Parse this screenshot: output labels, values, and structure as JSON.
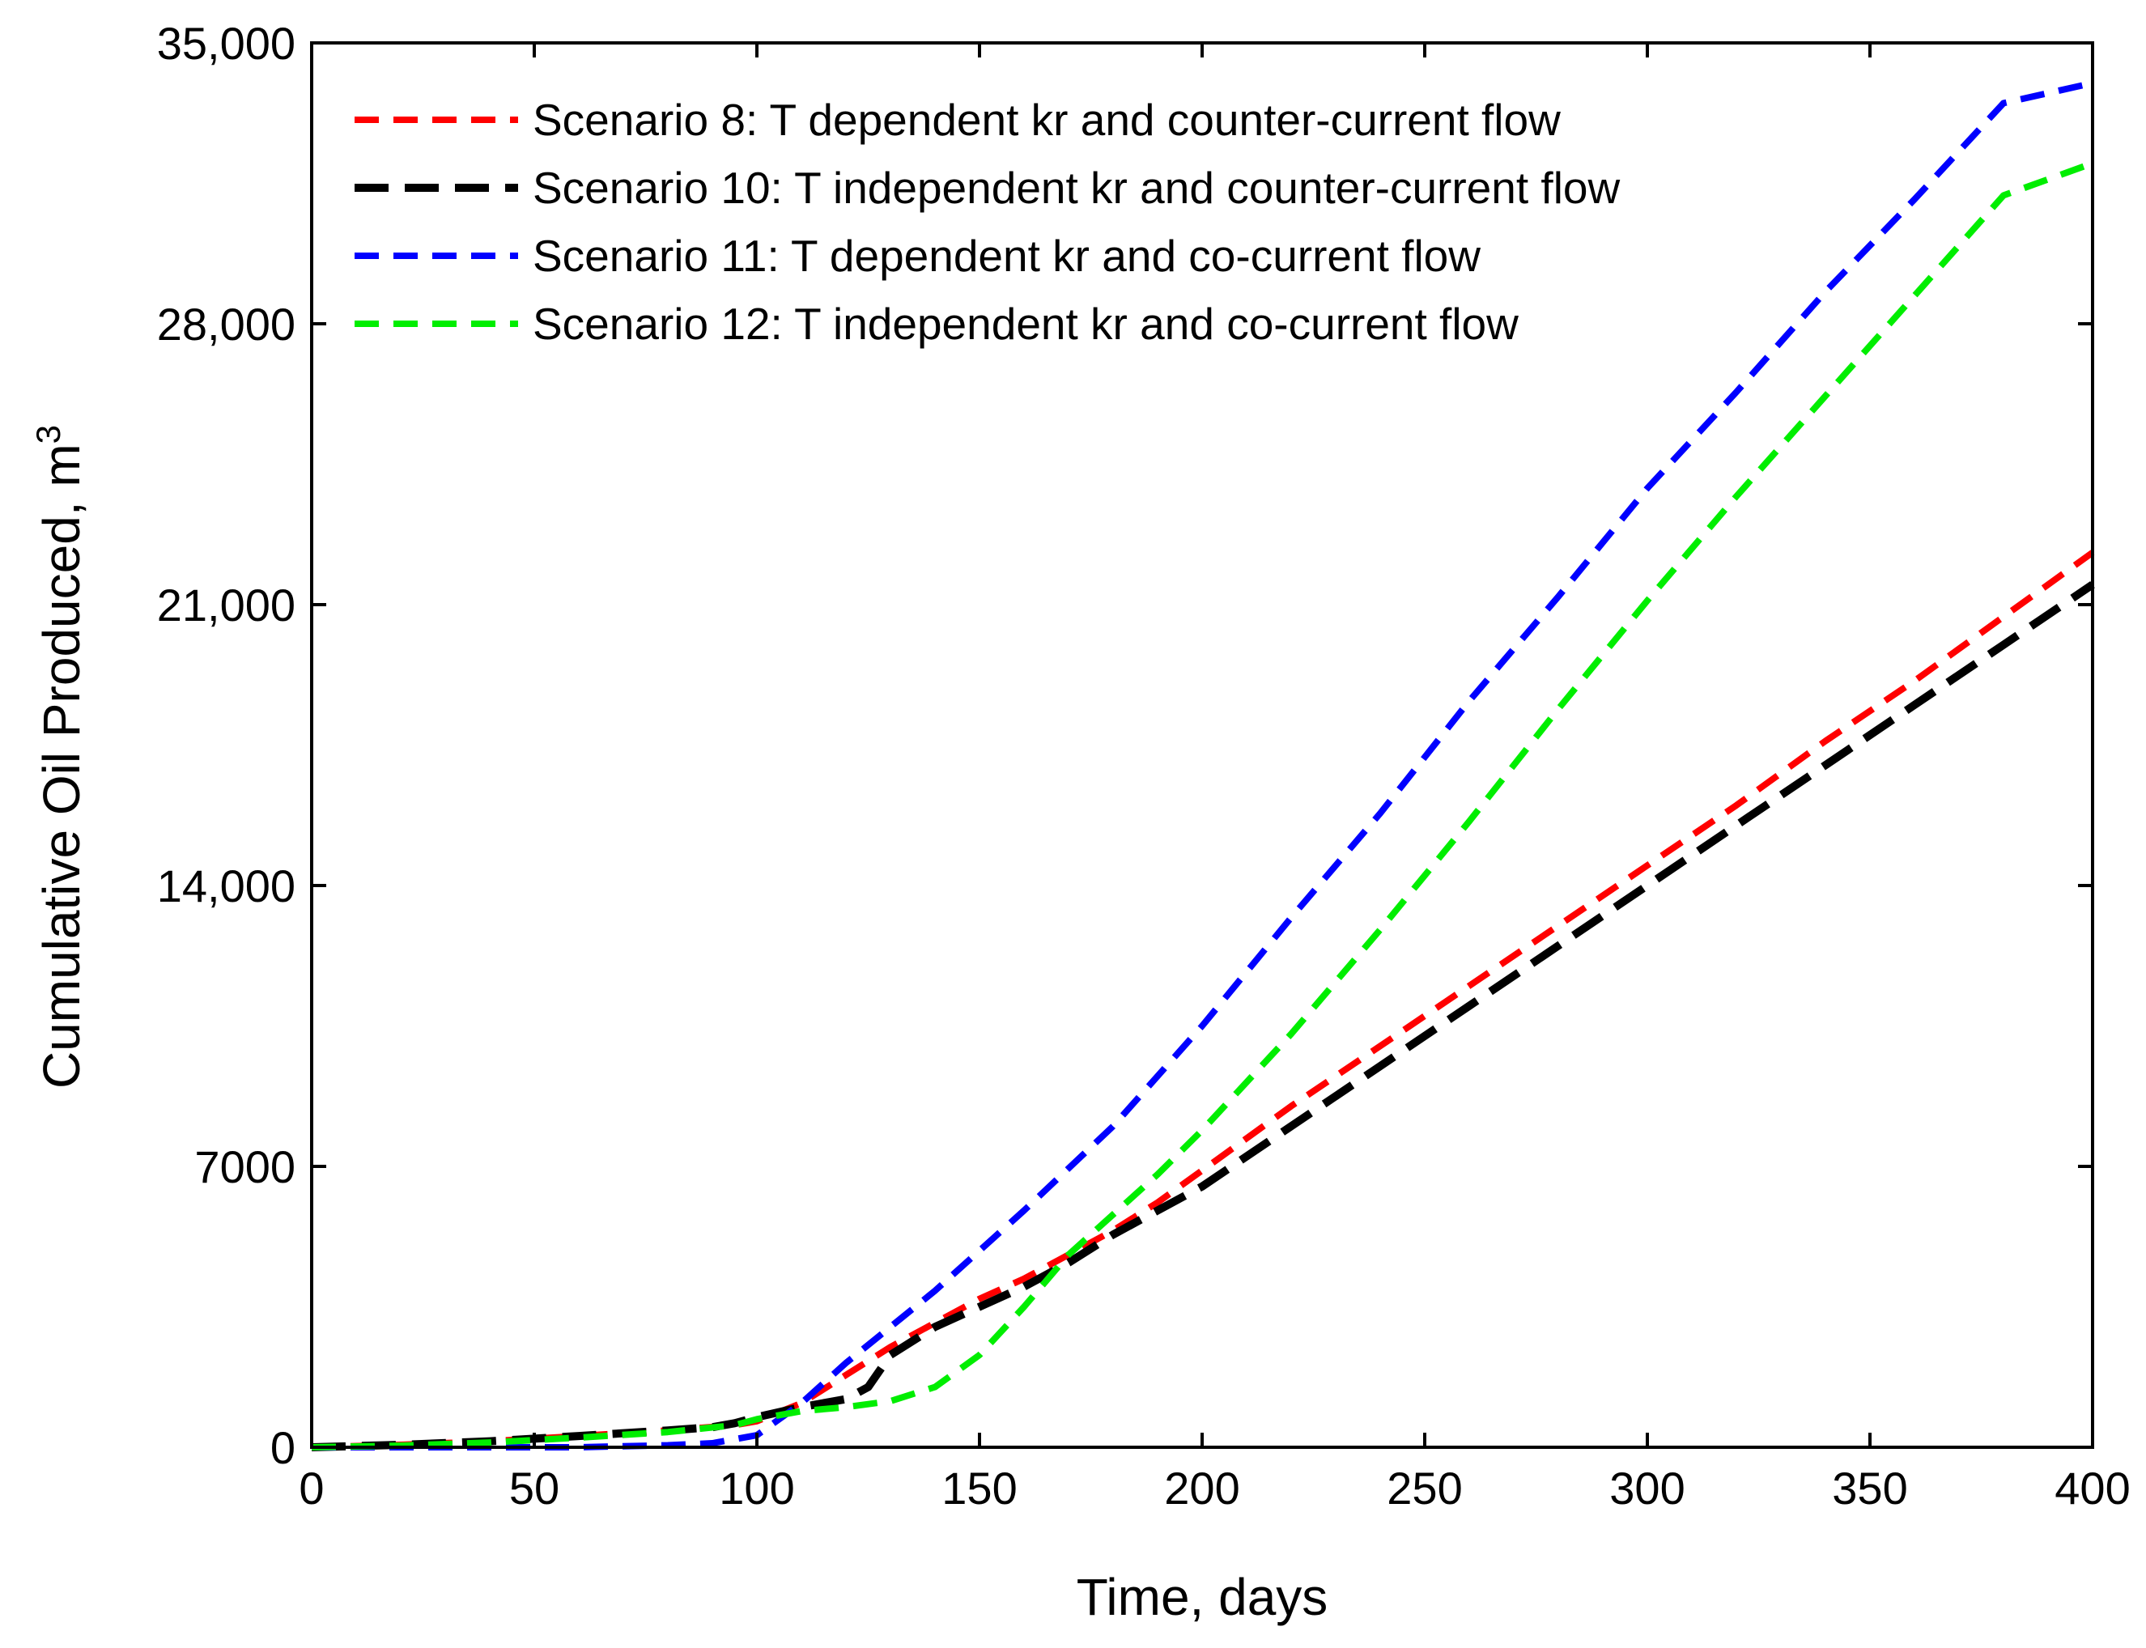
{
  "chart_data": {
    "type": "line",
    "title": "",
    "xlabel": "Time, days",
    "ylabel": "Cumulative Oil Produced, m",
    "ylabel_superscript": "3",
    "xlim": [
      0,
      400
    ],
    "ylim": [
      0,
      35000
    ],
    "x_ticks": [
      0,
      50,
      100,
      150,
      200,
      250,
      300,
      350,
      400
    ],
    "y_ticks": [
      0,
      7000,
      14000,
      21000,
      28000,
      35000
    ],
    "x_tick_labels": [
      "0",
      "50",
      "100",
      "150",
      "200",
      "250",
      "300",
      "350",
      "400"
    ],
    "y_tick_labels": [
      "0",
      "7000",
      "14,000",
      "21,000",
      "28,000",
      "35,000"
    ],
    "grid": false,
    "legend_position": "top-left",
    "series": [
      {
        "name": "Scenario 8: T dependent kr and counter-current flow",
        "color": "#ff0000",
        "style": "dashed",
        "x": [
          0,
          20,
          40,
          60,
          80,
          95,
          100,
          110,
          120,
          130,
          140,
          150,
          160,
          170,
          180,
          190,
          200,
          220,
          240,
          260,
          280,
          300,
          320,
          340,
          360,
          380,
          400
        ],
        "y": [
          0,
          60,
          150,
          280,
          420,
          550,
          650,
          1100,
          1800,
          2500,
          3100,
          3700,
          4200,
          4800,
          5400,
          6100,
          6900,
          8500,
          10000,
          11500,
          13000,
          14500,
          16000,
          17600,
          19100,
          20700,
          22300
        ]
      },
      {
        "name": "Scenario 10: T independent kr and counter-current flow",
        "color": "#000000",
        "style": "dashed",
        "x": [
          0,
          20,
          40,
          60,
          80,
          90,
          95,
          100,
          110,
          120,
          125,
          130,
          140,
          150,
          160,
          170,
          180,
          190,
          200,
          220,
          240,
          260,
          280,
          300,
          320,
          340,
          360,
          380,
          400
        ],
        "y": [
          0,
          60,
          150,
          280,
          420,
          500,
          600,
          750,
          1000,
          1200,
          1500,
          2300,
          3000,
          3500,
          4000,
          4600,
          5300,
          5900,
          6500,
          8000,
          9500,
          11000,
          12500,
          14000,
          15500,
          17000,
          18500,
          20000,
          21500
        ]
      },
      {
        "name": "Scenario 11: T dependent kr and co-current flow",
        "color": "#0000ff",
        "style": "dashed",
        "x": [
          0,
          20,
          40,
          60,
          80,
          90,
          100,
          110,
          120,
          130,
          140,
          150,
          160,
          180,
          200,
          220,
          240,
          260,
          280,
          300,
          320,
          340,
          360,
          380,
          400
        ],
        "y": [
          0,
          0,
          0,
          0,
          50,
          100,
          300,
          1100,
          2100,
          3000,
          3900,
          4900,
          5900,
          8000,
          10500,
          13200,
          15800,
          18600,
          21200,
          23900,
          26300,
          28800,
          31100,
          33500,
          34000
        ]
      },
      {
        "name": "Scenario 12: T independent kr and co-current flow",
        "color": "#00ee00",
        "style": "dashed",
        "x": [
          0,
          20,
          40,
          60,
          80,
          95,
          100,
          110,
          120,
          130,
          140,
          150,
          160,
          170,
          180,
          190,
          200,
          220,
          240,
          260,
          280,
          300,
          320,
          340,
          360,
          380,
          400
        ],
        "y": [
          0,
          40,
          120,
          240,
          380,
          550,
          700,
          900,
          1000,
          1150,
          1500,
          2300,
          3500,
          4800,
          5800,
          6800,
          7900,
          10300,
          12900,
          15600,
          18400,
          21100,
          23700,
          26200,
          28700,
          31200,
          32000
        ]
      }
    ]
  }
}
